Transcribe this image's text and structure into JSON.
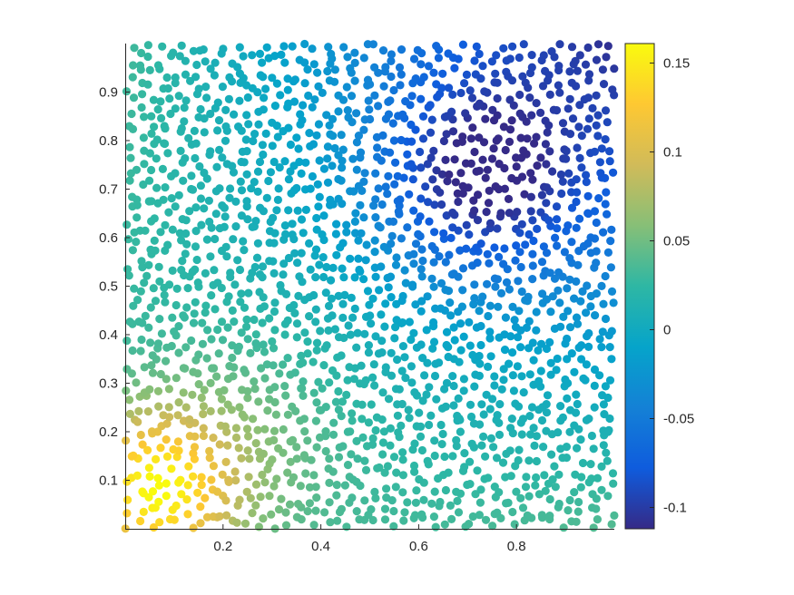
{
  "chart_data": {
    "type": "scatter",
    "title": "",
    "xlabel": "",
    "ylabel": "",
    "xlim": [
      0,
      1
    ],
    "ylim": [
      0,
      1
    ],
    "x_ticks": [
      0.2,
      0.4,
      0.6,
      0.8
    ],
    "x_tick_labels": [
      "0.2",
      "0.4",
      "0.6",
      "0.8"
    ],
    "y_ticks": [
      0.1,
      0.2,
      0.3,
      0.4,
      0.5,
      0.6,
      0.7,
      0.8,
      0.9
    ],
    "y_tick_labels": [
      "0.1",
      "0.2",
      "0.3",
      "0.4",
      "0.5",
      "0.6",
      "0.7",
      "0.8",
      "0.9"
    ],
    "grid": false,
    "colormap": "parula",
    "colorbar": {
      "min": -0.112,
      "max": 0.161,
      "ticks": [
        -0.1,
        -0.05,
        0,
        0.05,
        0.1,
        0.15
      ],
      "tick_labels": [
        "-0.1",
        "-0.05",
        "0",
        "0.05",
        "0.1",
        "0.15"
      ]
    },
    "points_total": 2000,
    "point_grid_columns": 50,
    "point_grid_rows": 40,
    "value_field": "c = 0.022 - 0.16*(x-0.08)*(y-0.12) - 0.085*exp(-((x-0.72)^2+(y-0.72)^2)/0.04) + 0.13*exp(-((x-0.06)^2+(y-0.08)^2)/0.025) + 0.03*exp(-((x-0.25)^2+(y-0.2)^2)/0.05)"
  },
  "colors": {
    "axis": "#262626",
    "background": "#ffffff",
    "parula_stops": [
      "#352a87",
      "#0f5cdd",
      "#1481d6",
      "#06a4ca",
      "#2eb7a4",
      "#87bf77",
      "#d1bb59",
      "#fec832",
      "#f9fb0e"
    ]
  }
}
